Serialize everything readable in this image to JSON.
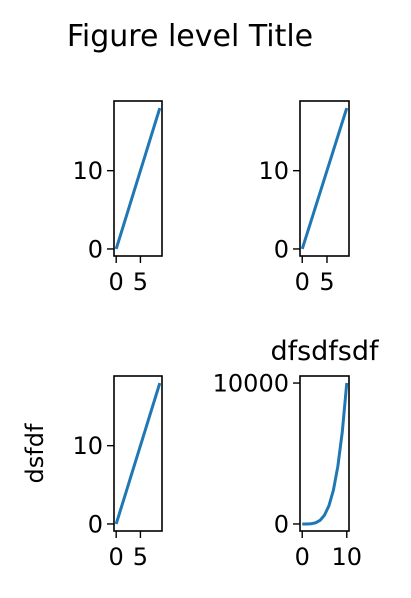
{
  "figure_title": "Figure level Title",
  "colors": {
    "series": "#1f77b4"
  },
  "chart_data": [
    {
      "type": "line",
      "title": "",
      "xlabel": "",
      "ylabel": "",
      "xlim": [
        -0.45,
        9.45
      ],
      "ylim": [
        -0.9,
        18.9
      ],
      "xticks": [
        {
          "value": 0,
          "label": "0"
        },
        {
          "value": 5,
          "label": "5"
        }
      ],
      "yticks": [
        {
          "value": 0,
          "label": "0"
        },
        {
          "value": 10,
          "label": "10"
        }
      ],
      "series": [
        {
          "x": [
            0,
            1,
            2,
            3,
            4,
            5,
            6,
            7,
            8,
            9
          ],
          "y": [
            0,
            2,
            4,
            6,
            8,
            10,
            12,
            14,
            16,
            18
          ]
        }
      ]
    },
    {
      "type": "line",
      "title": "",
      "xlabel": "",
      "ylabel": "",
      "xlim": [
        -0.45,
        9.45
      ],
      "ylim": [
        -0.9,
        18.9
      ],
      "xticks": [
        {
          "value": 0,
          "label": "0"
        },
        {
          "value": 5,
          "label": "5"
        }
      ],
      "yticks": [
        {
          "value": 0,
          "label": "0"
        },
        {
          "value": 10,
          "label": "10"
        }
      ],
      "series": [
        {
          "x": [
            0,
            1,
            2,
            3,
            4,
            5,
            6,
            7,
            8,
            9
          ],
          "y": [
            0,
            2,
            4,
            6,
            8,
            10,
            12,
            14,
            16,
            18
          ]
        }
      ]
    },
    {
      "type": "line",
      "title": "",
      "xlabel": "",
      "ylabel": "dsfdf",
      "xlim": [
        -0.45,
        9.45
      ],
      "ylim": [
        -0.9,
        18.9
      ],
      "xticks": [
        {
          "value": 0,
          "label": "0"
        },
        {
          "value": 5,
          "label": "5"
        }
      ],
      "yticks": [
        {
          "value": 0,
          "label": "0"
        },
        {
          "value": 10,
          "label": "10"
        }
      ],
      "series": [
        {
          "x": [
            0,
            1,
            2,
            3,
            4,
            5,
            6,
            7,
            8,
            9
          ],
          "y": [
            0,
            2,
            4,
            6,
            8,
            10,
            12,
            14,
            16,
            18
          ]
        }
      ]
    },
    {
      "type": "line",
      "title": "dfsdfsdf",
      "xlabel": "",
      "ylabel": "",
      "xlim": [
        -0.5,
        10.5
      ],
      "ylim": [
        -500,
        10500
      ],
      "xticks": [
        {
          "value": 0,
          "label": "0"
        },
        {
          "value": 10,
          "label": "10"
        }
      ],
      "yticks": [
        {
          "value": 0,
          "label": "0"
        },
        {
          "value": 10000,
          "label": "10000"
        }
      ],
      "series": [
        {
          "x": [
            0,
            1,
            2,
            3,
            4,
            5,
            6,
            7,
            8,
            9,
            10
          ],
          "y": [
            0,
            1,
            16,
            81,
            256,
            625,
            1296,
            2401,
            4096,
            6561,
            10000
          ]
        }
      ]
    }
  ]
}
